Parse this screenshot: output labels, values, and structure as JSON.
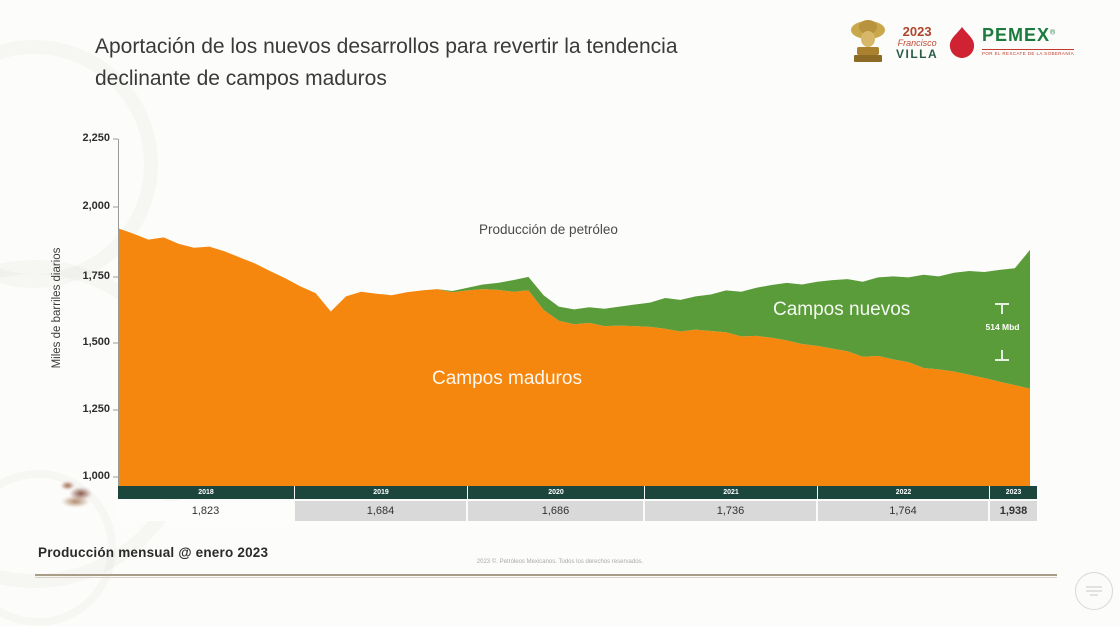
{
  "header": {
    "title_line1": "Aportación de los nuevos desarrollos para revertir la tendencia",
    "title_line2": "declinante de campos maduros"
  },
  "logos": {
    "villa": {
      "year": "2023",
      "first_name": "Francisco",
      "last_name": "VILLA"
    },
    "pemex": {
      "name": "PEMEX",
      "registered": "®",
      "tagline": "POR EL RESCATE DE LA SOBERANÍA"
    }
  },
  "chart": {
    "subtitle": "Producción de petróleo",
    "y_axis_label": "Miles de barriles diarios",
    "yticks": [
      "2,250",
      "2,000",
      "1,750",
      "1,500",
      "1,250",
      "1,000"
    ],
    "area_labels": {
      "maduros": "Campos maduros",
      "nuevos": "Campos nuevos"
    },
    "annotation": {
      "value": "514 Mbd"
    },
    "years": [
      "2018",
      "2019",
      "2020",
      "2021",
      "2022",
      "2023"
    ],
    "values": [
      "1,823",
      "1,684",
      "1,686",
      "1,736",
      "1,764",
      "1,938"
    ]
  },
  "footer": {
    "left": "Producción mensual @ enero 2023",
    "center": "2023 ©. Petróleos Mexicanos. Todos los derechos reservados."
  },
  "colors": {
    "orange": "#F5870F",
    "green": "#5B9C3A",
    "axis_bar": "#1C463C",
    "value_cell_bg": "#D9D9D9"
  },
  "chart_data": {
    "type": "area",
    "stacked": true,
    "title": "Producción de petróleo",
    "ylabel": "Miles de barriles diarios",
    "ylim": [
      1000,
      2250
    ],
    "x_unit": "month",
    "x_range": [
      "2018-01",
      "2023-01"
    ],
    "x_year_segments": [
      "2018",
      "2019",
      "2020",
      "2021",
      "2022",
      "2023"
    ],
    "table_values_by_year": [
      1823,
      1684,
      1686,
      1736,
      1764,
      1938
    ],
    "annotation_label": "514 Mbd",
    "legend_position": "inside-areas",
    "grid": false,
    "series": [
      {
        "name": "Campos maduros",
        "color": "#F5870F",
        "values": [
          1920,
          1900,
          1878,
          1886,
          1862,
          1848,
          1852,
          1835,
          1812,
          1790,
          1762,
          1735,
          1705,
          1680,
          1612,
          1668,
          1685,
          1678,
          1672,
          1683,
          1690,
          1695,
          1683,
          1690,
          1695,
          1692,
          1685,
          1690,
          1618,
          1578,
          1565,
          1570,
          1558,
          1560,
          1558,
          1555,
          1548,
          1538,
          1545,
          1540,
          1535,
          1520,
          1522,
          1515,
          1505,
          1492,
          1485,
          1475,
          1465,
          1445,
          1448,
          1435,
          1425,
          1403,
          1398,
          1390,
          1378,
          1366,
          1352,
          1340,
          1326
        ]
      },
      {
        "name": "Campos nuevos",
        "color": "#5B9C3A",
        "values": [
          0,
          0,
          0,
          0,
          0,
          0,
          0,
          0,
          0,
          0,
          0,
          0,
          0,
          0,
          0,
          0,
          0,
          0,
          0,
          0,
          0,
          0,
          5,
          10,
          17,
          26,
          43,
          50,
          54,
          52,
          55,
          58,
          64,
          70,
          80,
          90,
          114,
          117,
          123,
          135,
          155,
          165,
          178,
          195,
          213,
          220,
          237,
          253,
          267,
          277,
          290,
          307,
          313,
          345,
          344,
          365,
          384,
          392,
          414,
          432,
          514
        ]
      }
    ]
  }
}
